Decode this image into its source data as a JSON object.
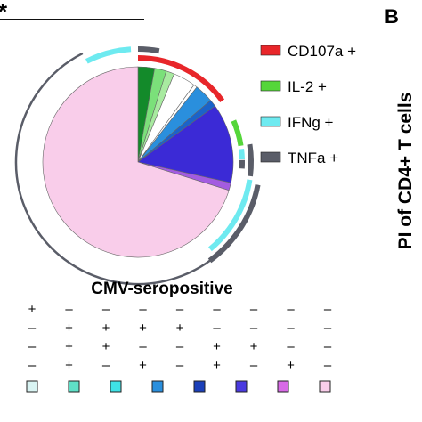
{
  "header": {
    "sig_mark": "*",
    "panel_letter": "B"
  },
  "side_label": "PI of CD4+ T cells",
  "chart_data": {
    "type": "pie",
    "title": "CMV-seropositive",
    "legend_position": "right",
    "legend": [
      {
        "label": "CD107a +",
        "color": "#e8262a"
      },
      {
        "label": "IL-2 +",
        "color": "#55d63a"
      },
      {
        "label": "IFNg +",
        "color": "#6eeaf0"
      },
      {
        "label": "TNFa +",
        "color": "#5a5d68"
      }
    ],
    "slices": [
      {
        "combo": "IL-2+ IFNg+ TNFa+",
        "value": 2.8,
        "color": "#138a2a"
      },
      {
        "combo": "IL-2+ IFNg+",
        "value": 2.0,
        "color": "#7be07a"
      },
      {
        "combo": "IL-2+ TNFa+",
        "value": 1.4,
        "color": "#a8eaa0"
      },
      {
        "combo": "IL-2+",
        "value": 3.8,
        "color": "#ffffff"
      },
      {
        "combo": "IFNg+ TNFa+ (a)",
        "value": 0.6,
        "color": "#ffffff"
      },
      {
        "combo": "IFNg+ TNFa+",
        "value": 3.2,
        "color": "#2a8fdd"
      },
      {
        "combo": "IFNg+ (a)",
        "value": 1.2,
        "color": "#1b63c9"
      },
      {
        "combo": "TNFa+",
        "value": 13.5,
        "color": "#3b2ad6"
      },
      {
        "combo": "TNFa+ IFNg+",
        "value": 1.3,
        "color": "#a35ce0"
      },
      {
        "combo": "none",
        "value": 70.2,
        "color": "#f9cdea"
      }
    ],
    "arcs": [
      {
        "marker": "CD107a",
        "ring": 1,
        "start": 0.0,
        "end": 15.0,
        "color": "#e8262a"
      },
      {
        "marker": "IL-2",
        "ring": 1,
        "start": 18.5,
        "end": 22.5,
        "color": "#55d63a"
      },
      {
        "marker": "IFNg",
        "ring": 1,
        "start": 23.0,
        "end": 24.6,
        "color": "#6eeaf0"
      },
      {
        "marker": "IFNg",
        "ring": 2,
        "start": -7.5,
        "end": -1.0,
        "color": "#6eeaf0"
      },
      {
        "marker": "IFNg",
        "ring": 2,
        "start": 27.5,
        "end": 39.0,
        "color": "#6eeaf0"
      },
      {
        "marker": "TNFa",
        "ring": 1,
        "start": 24.7,
        "end": 26.0,
        "color": "#5a5d68"
      },
      {
        "marker": "TNFa",
        "ring": 2,
        "start": 0.0,
        "end": 3.0,
        "color": "#5a5d68"
      },
      {
        "marker": "TNFa",
        "ring": 2,
        "start": 22.5,
        "end": 27.0,
        "color": "#5a5d68"
      },
      {
        "marker": "TNFa",
        "ring": 3,
        "start": 28.0,
        "end": 40.0,
        "color": "#5a5d68"
      },
      {
        "marker": "none",
        "ring": 3,
        "start": -7.5,
        "end": 28.0,
        "color": "#5a5d68",
        "open": true
      }
    ]
  },
  "combo_table": {
    "rows": [
      [
        "+",
        "–",
        "–",
        "–",
        "–",
        "–",
        "–",
        "–",
        "–"
      ],
      [
        "–",
        "+",
        "+",
        "+",
        "+",
        "–",
        "–",
        "–",
        "–"
      ],
      [
        "–",
        "+",
        "+",
        "–",
        "–",
        "+",
        "+",
        "–",
        "–"
      ],
      [
        "–",
        "+",
        "–",
        "+",
        "–",
        "+",
        "–",
        "+",
        "–"
      ]
    ],
    "swatches": [
      "#d9f4f3",
      "#5fe0c7",
      "#3fe2e6",
      "#2a8fdd",
      "#1b3fb9",
      "#4a3ae0",
      "#d86ae6",
      "#f9cdea"
    ]
  }
}
